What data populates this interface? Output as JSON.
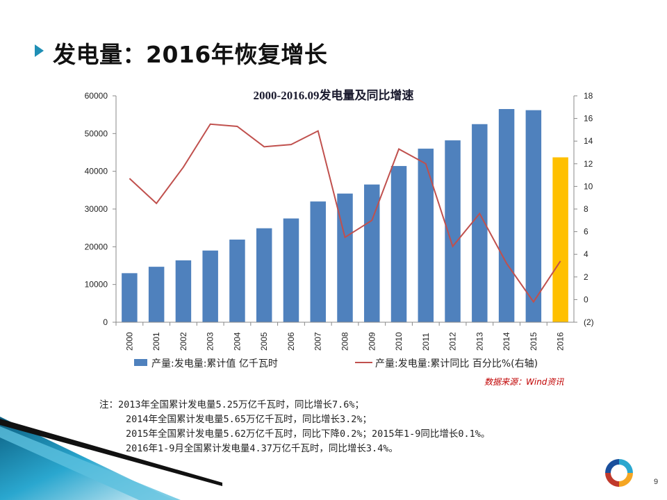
{
  "slide": {
    "title": "发电量：2016年恢复增长",
    "page_number": "9",
    "source": "数据来源：Wind资讯"
  },
  "notes": {
    "prefix": "注：",
    "lines": [
      "2013年全国累计发电量5.25万亿千瓦时，同比增长7.6%；",
      "2014年全国累计发电量5.65万亿千瓦时，同比增长3.2%；",
      "2015年全国累计发电量5.62万亿千瓦时，同比下降0.2%；2015年1-9同比增长0.1%。",
      "2016年1-9月全国累计发电量4.37万亿千瓦时，同比增长3.4%。"
    ]
  },
  "colors": {
    "bar": "#4f81bd",
    "bar_highlight": "#ffc000",
    "line": "#c0504d",
    "accent": "#1f8fb5",
    "source_text": "#c00000"
  },
  "chart_data": {
    "type": "bar",
    "title": "2000-2016.09发电量及同比增速",
    "categories": [
      "2000",
      "2001",
      "2002",
      "2003",
      "2004",
      "2005",
      "2006",
      "2007",
      "2008",
      "2009",
      "2010",
      "2011",
      "2012",
      "2013",
      "2014",
      "2015",
      "2016"
    ],
    "series": [
      {
        "name": "产量:发电量:累计值 亿千瓦时",
        "type": "bar",
        "axis": "left",
        "values": [
          13000,
          14700,
          16400,
          19000,
          21900,
          24900,
          27500,
          32000,
          34100,
          36500,
          41400,
          46000,
          48200,
          52500,
          56500,
          56200,
          43700
        ],
        "highlight_index": 16
      },
      {
        "name": "产量:发电量:累计同比 百分比%(右轴)",
        "type": "line",
        "axis": "right",
        "values": [
          10.7,
          8.5,
          11.7,
          15.5,
          15.3,
          13.5,
          13.7,
          14.9,
          5.5,
          7.0,
          13.3,
          12.0,
          4.7,
          7.6,
          3.2,
          -0.2,
          3.4
        ]
      }
    ],
    "y_left": {
      "ylim": [
        0,
        60000
      ],
      "ticks": [
        "0",
        "10000",
        "20000",
        "30000",
        "40000",
        "50000",
        "60000"
      ]
    },
    "y_right": {
      "ylim": [
        -2,
        18
      ],
      "ticks": [
        "(2)",
        "0",
        "2",
        "4",
        "6",
        "8",
        "10",
        "12",
        "14",
        "16",
        "18"
      ]
    },
    "grid": false,
    "legend": "bottom"
  }
}
